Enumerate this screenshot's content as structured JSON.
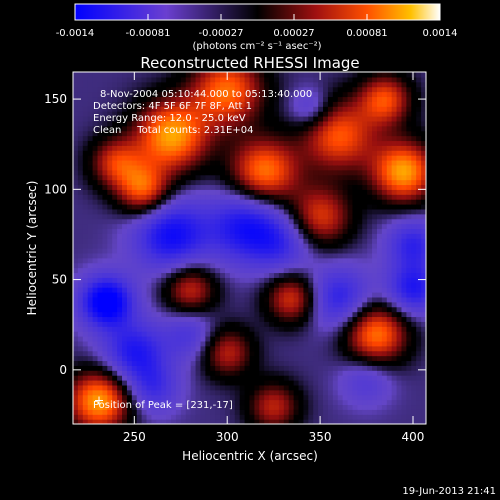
{
  "chart_data": {
    "type": "heatmap",
    "title": "Reconstructed RHESSI Image",
    "xlabel": "Heliocentric X (arcsec)",
    "ylabel": "Heliocentric Y (arcsec)",
    "xlim": [
      217,
      407
    ],
    "ylim": [
      -30,
      165
    ],
    "x_ticks": [
      250,
      300,
      350,
      400
    ],
    "y_ticks": [
      0,
      50,
      100,
      150
    ],
    "colorbar": {
      "range": [
        -0.0014,
        0.0014
      ],
      "ticks": [
        "-0.0014",
        "-0.00081",
        "-0.00027",
        "0.00027",
        "0.00081",
        "0.0014"
      ],
      "unit": "(photons cm⁻² s⁻¹ asec⁻²)"
    },
    "annotations": [
      "8-Nov-2004 05:10:44.000 to 05:13:40.000",
      "Detectors: 4F 5F 6F 7F 8F, Att 1",
      "Energy Range: 12.0 - 25.0 keV",
      "Clean     Total counts: 2.31E+04"
    ],
    "peak_text": "Position of Peak = [231,-17]",
    "peak_position": [
      231,
      -17
    ],
    "timestamp": "19-Jun-2013 21:41",
    "emission": [
      {
        "x": 231,
        "y": -17,
        "a": 0.95,
        "s": 12
      },
      {
        "x": 270,
        "y": 130,
        "a": 0.95,
        "s": 14
      },
      {
        "x": 255,
        "y": 100,
        "a": 0.75,
        "s": 10
      },
      {
        "x": 300,
        "y": 155,
        "a": 0.8,
        "s": 14
      },
      {
        "x": 320,
        "y": 110,
        "a": 0.85,
        "s": 13
      },
      {
        "x": 360,
        "y": 130,
        "a": 0.75,
        "s": 14
      },
      {
        "x": 395,
        "y": 110,
        "a": 0.95,
        "s": 12
      },
      {
        "x": 385,
        "y": 150,
        "a": 0.7,
        "s": 10
      },
      {
        "x": 350,
        "y": 85,
        "a": 0.65,
        "s": 12
      },
      {
        "x": 380,
        "y": 20,
        "a": 0.85,
        "s": 12
      },
      {
        "x": 335,
        "y": 40,
        "a": 0.65,
        "s": 10
      },
      {
        "x": 280,
        "y": 45,
        "a": 0.6,
        "s": 10
      },
      {
        "x": 300,
        "y": 10,
        "a": 0.55,
        "s": 10
      },
      {
        "x": 240,
        "y": 115,
        "a": 0.6,
        "s": 10
      },
      {
        "x": 325,
        "y": -20,
        "a": 0.55,
        "s": 10
      },
      {
        "x": 235,
        "y": 38,
        "a": -0.9,
        "s": 10
      },
      {
        "x": 270,
        "y": 75,
        "a": -0.7,
        "s": 14
      },
      {
        "x": 310,
        "y": 80,
        "a": -0.65,
        "s": 14
      },
      {
        "x": 250,
        "y": 10,
        "a": -0.6,
        "s": 12
      },
      {
        "x": 360,
        "y": 40,
        "a": -0.55,
        "s": 12
      },
      {
        "x": 400,
        "y": 45,
        "a": -0.6,
        "s": 10
      },
      {
        "x": 400,
        "y": 70,
        "a": -0.5,
        "s": 10
      },
      {
        "x": 330,
        "y": 70,
        "a": -0.4,
        "s": 12
      },
      {
        "x": 280,
        "y": 20,
        "a": -0.35,
        "s": 10
      },
      {
        "x": 345,
        "y": 145,
        "a": -0.35,
        "s": 8
      },
      {
        "x": 260,
        "y": -10,
        "a": -0.4,
        "s": 10
      },
      {
        "x": 375,
        "y": -5,
        "a": -0.3,
        "s": 10
      }
    ]
  }
}
